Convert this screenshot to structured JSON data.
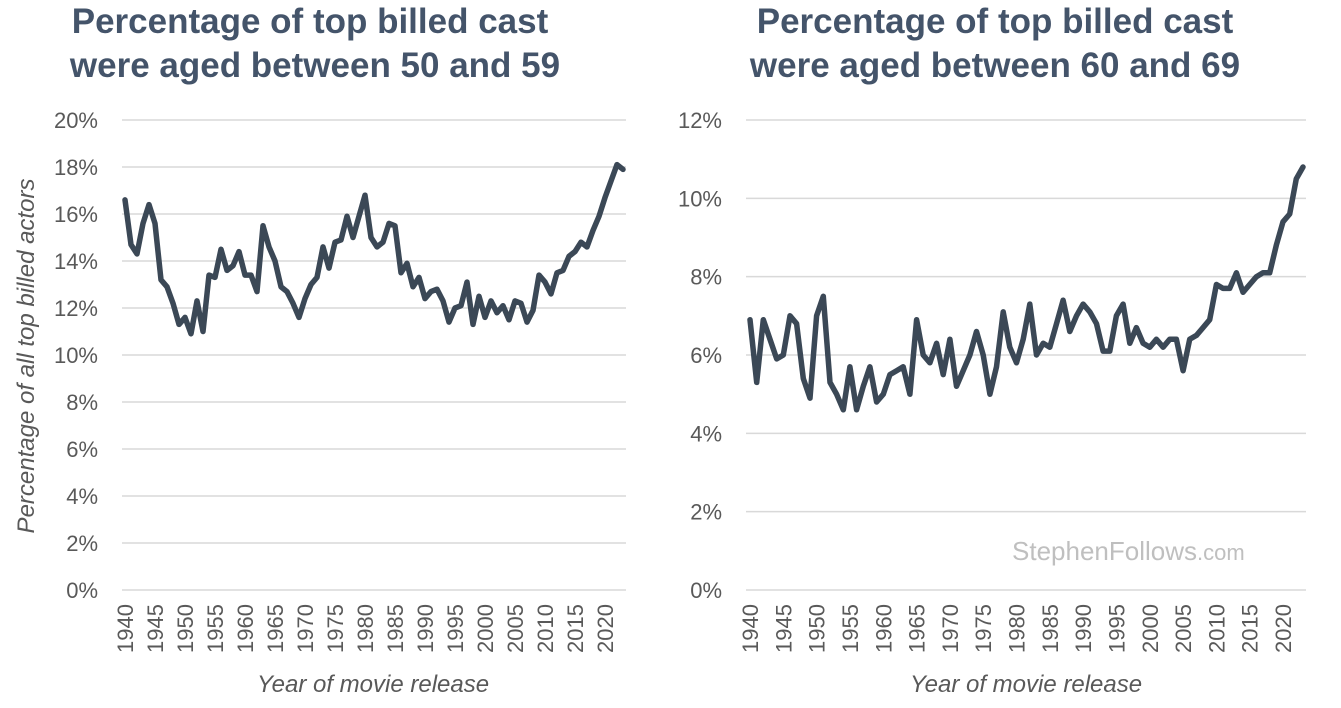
{
  "chart_data": [
    {
      "type": "line",
      "title": [
        "Percentage of top billed cast",
        "were aged between 50 and 59"
      ],
      "xlabel": "Year of movie release",
      "ylabel": "Percentage of all top billed actors",
      "xlim": [
        1940,
        2023
      ],
      "ylim": [
        0,
        20
      ],
      "yticks": [
        "0%",
        "2%",
        "4%",
        "6%",
        "8%",
        "10%",
        "12%",
        "14%",
        "16%",
        "18%",
        "20%"
      ],
      "xticks": [
        "1940",
        "1945",
        "1950",
        "1955",
        "1960",
        "1965",
        "1970",
        "1975",
        "1980",
        "1985",
        "1990",
        "1995",
        "2000",
        "2005",
        "2010",
        "2015",
        "2020"
      ],
      "grid": true,
      "series": [
        {
          "x": [
            1940,
            1941,
            1942,
            1943,
            1944,
            1945,
            1946,
            1947,
            1948,
            1949,
            1950,
            1951,
            1952,
            1953,
            1954,
            1955,
            1956,
            1957,
            1958,
            1959,
            1960,
            1961,
            1962,
            1963,
            1964,
            1965,
            1966,
            1967,
            1968,
            1969,
            1970,
            1971,
            1972,
            1973,
            1974,
            1975,
            1976,
            1977,
            1978,
            1979,
            1980,
            1981,
            1982,
            1983,
            1984,
            1985,
            1986,
            1987,
            1988,
            1989,
            1990,
            1991,
            1992,
            1993,
            1994,
            1995,
            1996,
            1997,
            1998,
            1999,
            2000,
            2001,
            2002,
            2003,
            2004,
            2005,
            2006,
            2007,
            2008,
            2009,
            2010,
            2011,
            2012,
            2013,
            2014,
            2015,
            2016,
            2017,
            2018,
            2019,
            2020,
            2021,
            2022,
            2023
          ],
          "values": [
            16.6,
            14.7,
            14.3,
            15.6,
            16.4,
            15.6,
            13.2,
            12.9,
            12.2,
            11.3,
            11.6,
            10.9,
            12.3,
            11.0,
            13.4,
            13.3,
            14.5,
            13.6,
            13.8,
            14.4,
            13.4,
            13.4,
            12.7,
            15.5,
            14.6,
            14.0,
            12.9,
            12.7,
            12.2,
            11.6,
            12.4,
            13.0,
            13.3,
            14.6,
            13.7,
            14.8,
            14.9,
            15.9,
            15.0,
            15.9,
            16.8,
            15.0,
            14.6,
            14.8,
            15.6,
            15.5,
            13.5,
            13.9,
            12.9,
            13.3,
            12.4,
            12.7,
            12.8,
            12.3,
            11.4,
            12.0,
            12.1,
            13.1,
            11.3,
            12.5,
            11.6,
            12.3,
            11.8,
            12.1,
            11.5,
            12.3,
            12.2,
            11.4,
            11.9,
            13.4,
            13.1,
            12.6,
            13.5,
            13.6,
            14.2,
            14.4,
            14.8,
            14.6,
            15.3,
            15.9,
            16.7,
            17.4,
            18.1,
            17.9
          ]
        }
      ]
    },
    {
      "type": "line",
      "title": [
        "Percentage of top billed cast",
        "were aged between 60 and 69"
      ],
      "xlabel": "Year of movie release",
      "ylabel": "",
      "xlim": [
        1940,
        2023
      ],
      "ylim": [
        0,
        12
      ],
      "yticks": [
        "0%",
        "2%",
        "4%",
        "6%",
        "8%",
        "10%",
        "12%"
      ],
      "xticks": [
        "1940",
        "1945",
        "1950",
        "1955",
        "1960",
        "1965",
        "1970",
        "1975",
        "1980",
        "1985",
        "1990",
        "1995",
        "2000",
        "2005",
        "2010",
        "2015",
        "2020"
      ],
      "grid": true,
      "series": [
        {
          "x": [
            1940,
            1941,
            1942,
            1943,
            1944,
            1945,
            1946,
            1947,
            1948,
            1949,
            1950,
            1951,
            1952,
            1953,
            1954,
            1955,
            1956,
            1957,
            1958,
            1959,
            1960,
            1961,
            1962,
            1963,
            1964,
            1965,
            1966,
            1967,
            1968,
            1969,
            1970,
            1971,
            1972,
            1973,
            1974,
            1975,
            1976,
            1977,
            1978,
            1979,
            1980,
            1981,
            1982,
            1983,
            1984,
            1985,
            1986,
            1987,
            1988,
            1989,
            1990,
            1991,
            1992,
            1993,
            1994,
            1995,
            1996,
            1997,
            1998,
            1999,
            2000,
            2001,
            2002,
            2003,
            2004,
            2005,
            2006,
            2007,
            2008,
            2009,
            2010,
            2011,
            2012,
            2013,
            2014,
            2015,
            2016,
            2017,
            2018,
            2019,
            2020,
            2021,
            2022,
            2023
          ],
          "values": [
            6.9,
            5.3,
            6.9,
            6.4,
            5.9,
            6.0,
            7.0,
            6.8,
            5.4,
            4.9,
            7.0,
            7.5,
            5.3,
            5.0,
            4.6,
            5.7,
            4.6,
            5.2,
            5.7,
            4.8,
            5.0,
            5.5,
            5.6,
            5.7,
            5.0,
            6.9,
            6.0,
            5.8,
            6.3,
            5.5,
            6.4,
            5.2,
            5.6,
            6.0,
            6.6,
            6.0,
            5.0,
            5.7,
            7.1,
            6.2,
            5.8,
            6.4,
            7.3,
            6.0,
            6.3,
            6.2,
            6.8,
            7.4,
            6.6,
            7.0,
            7.3,
            7.1,
            6.8,
            6.1,
            6.1,
            7.0,
            7.3,
            6.3,
            6.7,
            6.3,
            6.2,
            6.4,
            6.2,
            6.4,
            6.4,
            5.6,
            6.4,
            6.5,
            6.7,
            6.9,
            7.8,
            7.7,
            7.7,
            8.1,
            7.6,
            7.8,
            8.0,
            8.1,
            8.1,
            8.8,
            9.4,
            9.6,
            10.5,
            10.8
          ]
        }
      ]
    }
  ],
  "watermark": {
    "main": "StephenFollows",
    "suffix": ".com"
  }
}
